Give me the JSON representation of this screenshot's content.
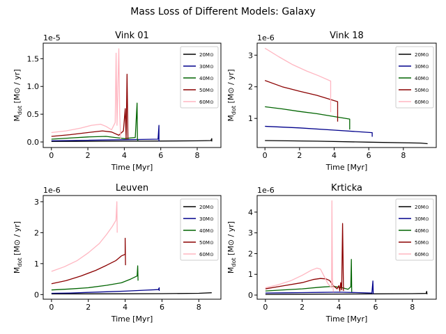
{
  "figure": {
    "title": "Mass Loss of Different Models: Galaxy"
  },
  "chart_data": [
    {
      "type": "line",
      "title": "Vink 01",
      "xlabel": "Time [Myr]",
      "ylabel": "M_dot [M⊙ / yr]",
      "offset_label": "1e-5",
      "xlim": [
        -0.45,
        9.3
      ],
      "ylim": [
        -0.1,
        1.78
      ],
      "xticks": [
        0,
        2,
        4,
        6,
        8
      ],
      "yticks": [
        0.0,
        0.5,
        1.0,
        1.5
      ],
      "ytick_labels": [
        "0.0",
        "0.5",
        "1.0",
        "1.5"
      ],
      "legend_position": "upper right",
      "series": [
        {
          "name": "20M⊙",
          "color": "#000000",
          "x": [
            0,
            2,
            4,
            6,
            8,
            8.75,
            8.8,
            8.8
          ],
          "y": [
            0.01,
            0.012,
            0.014,
            0.016,
            0.02,
            0.025,
            0.06,
            0.01
          ]
        },
        {
          "name": "30M⊙",
          "color": "#00008b",
          "x": [
            0,
            1,
            2,
            3,
            4,
            5,
            5.85,
            5.9,
            5.9,
            5.92
          ],
          "y": [
            0.02,
            0.025,
            0.03,
            0.035,
            0.04,
            0.045,
            0.05,
            0.3,
            0.02,
            0.01
          ]
        },
        {
          "name": "40M⊙",
          "color": "#006400",
          "x": [
            0,
            1,
            2,
            3,
            3.5,
            4,
            4.6,
            4.7,
            4.72,
            4.75
          ],
          "y": [
            0.05,
            0.07,
            0.09,
            0.1,
            0.08,
            0.06,
            0.08,
            0.7,
            0.05,
            0.02
          ]
        },
        {
          "name": "50M⊙",
          "color": "#8b0000",
          "x": [
            0,
            1,
            2,
            2.8,
            3.3,
            3.7,
            3.95,
            4.05,
            4.1,
            4.15,
            4.2
          ],
          "y": [
            0.1,
            0.13,
            0.17,
            0.2,
            0.18,
            0.12,
            0.2,
            0.6,
            0.05,
            1.22,
            0.05
          ]
        },
        {
          "name": "60M⊙",
          "color": "#ffb6c1",
          "x": [
            0,
            0.8,
            1.6,
            2.2,
            2.7,
            3.0,
            3.3,
            3.5,
            3.55,
            3.6,
            3.7,
            3.75,
            3.8
          ],
          "y": [
            0.17,
            0.2,
            0.25,
            0.3,
            0.32,
            0.28,
            0.22,
            0.35,
            1.6,
            0.3,
            1.68,
            0.5,
            0.05
          ]
        }
      ]
    },
    {
      "type": "line",
      "title": "Vink 18",
      "xlabel": "Time [Myr]",
      "ylabel": "M_dot [M⊙ / yr]",
      "offset_label": "1e-6",
      "xlim": [
        -0.45,
        9.9
      ],
      "ylim": [
        0.08,
        3.38
      ],
      "xticks": [
        0,
        2,
        4,
        6,
        8
      ],
      "yticks": [
        1,
        2,
        3
      ],
      "ytick_labels": [
        "1",
        "2",
        "3"
      ],
      "legend_position": "upper right",
      "series": [
        {
          "name": "20M⊙",
          "color": "#000000",
          "x": [
            0,
            3,
            6,
            9,
            9.4
          ],
          "y": [
            0.3,
            0.28,
            0.25,
            0.22,
            0.2
          ]
        },
        {
          "name": "30M⊙",
          "color": "#00008b",
          "x": [
            0,
            2,
            4,
            6.2,
            6.2
          ],
          "y": [
            0.75,
            0.7,
            0.63,
            0.55,
            0.42
          ]
        },
        {
          "name": "40M⊙",
          "color": "#006400",
          "x": [
            0,
            1,
            2,
            3,
            4,
            4.9,
            4.9
          ],
          "y": [
            1.37,
            1.3,
            1.22,
            1.15,
            1.06,
            0.98,
            0.65
          ]
        },
        {
          "name": "50M⊙",
          "color": "#8b0000",
          "x": [
            0,
            1,
            2,
            3,
            4.2,
            4.2
          ],
          "y": [
            2.2,
            2.0,
            1.86,
            1.73,
            1.53,
            0.9
          ]
        },
        {
          "name": "60M⊙",
          "color": "#ffb6c1",
          "x": [
            0,
            0.8,
            1.6,
            2.4,
            3.1,
            3.8,
            3.8
          ],
          "y": [
            3.22,
            2.95,
            2.7,
            2.5,
            2.35,
            2.18,
            1.2
          ]
        }
      ]
    },
    {
      "type": "line",
      "title": "Leuven",
      "xlabel": "Time [Myr]",
      "ylabel": "M_dot [M⊙ / yr]",
      "offset_label": "1e-6",
      "xlim": [
        -0.45,
        9.2
      ],
      "ylim": [
        -0.15,
        3.2
      ],
      "xticks": [
        0,
        2,
        4,
        6,
        8
      ],
      "yticks": [
        0,
        1,
        2,
        3
      ],
      "ytick_labels": [
        "0",
        "1",
        "2",
        "3"
      ],
      "legend_position": "upper right",
      "series": [
        {
          "name": "20M⊙",
          "color": "#000000",
          "x": [
            0,
            2,
            4,
            6,
            8,
            8.7
          ],
          "y": [
            0.02,
            0.022,
            0.025,
            0.03,
            0.04,
            0.06
          ]
        },
        {
          "name": "30M⊙",
          "color": "#00008b",
          "x": [
            0,
            1,
            2,
            3,
            4,
            5,
            5.8,
            5.85,
            5.85
          ],
          "y": [
            0.04,
            0.05,
            0.07,
            0.09,
            0.11,
            0.14,
            0.16,
            0.22,
            0.12
          ]
        },
        {
          "name": "40M⊙",
          "color": "#006400",
          "x": [
            0,
            1,
            2,
            3,
            3.8,
            4.3,
            4.65,
            4.68,
            4.7
          ],
          "y": [
            0.15,
            0.18,
            0.22,
            0.3,
            0.38,
            0.5,
            0.6,
            0.93,
            0.45
          ]
        },
        {
          "name": "50M⊙",
          "color": "#8b0000",
          "x": [
            0,
            0.8,
            1.6,
            2.4,
            3.0,
            3.5,
            3.8,
            4.0,
            4.0,
            4.02
          ],
          "y": [
            0.35,
            0.45,
            0.6,
            0.78,
            0.95,
            1.1,
            1.25,
            1.3,
            1.82,
            0.95
          ]
        },
        {
          "name": "60M⊙",
          "color": "#ffb6c1",
          "x": [
            0,
            0.7,
            1.4,
            2.0,
            2.6,
            3.0,
            3.3,
            3.5,
            3.55,
            3.57
          ],
          "y": [
            0.75,
            0.9,
            1.1,
            1.35,
            1.65,
            1.95,
            2.2,
            2.4,
            3.0,
            2.0
          ]
        }
      ]
    },
    {
      "type": "line",
      "title": "Krticka",
      "xlabel": "Time [Myr]",
      "ylabel": "M_dot [M⊙ / yr]",
      "offset_label": "1e-6",
      "xlim": [
        -0.45,
        9.3
      ],
      "ylim": [
        -0.2,
        4.8
      ],
      "xticks": [
        0,
        2,
        4,
        6,
        8
      ],
      "yticks": [
        0,
        1,
        2,
        3,
        4
      ],
      "ytick_labels": [
        "0",
        "1",
        "2",
        "3",
        "4"
      ],
      "legend_position": "upper right",
      "series": [
        {
          "name": "20M⊙",
          "color": "#000000",
          "x": [
            0,
            2,
            4,
            6,
            8,
            8.75,
            8.78,
            8.8
          ],
          "y": [
            0.03,
            0.04,
            0.05,
            0.06,
            0.07,
            0.08,
            0.18,
            0.04
          ]
        },
        {
          "name": "30M⊙",
          "color": "#00008b",
          "x": [
            0,
            1,
            2,
            3,
            4,
            5,
            5.8,
            5.85,
            5.87
          ],
          "y": [
            0.1,
            0.11,
            0.12,
            0.13,
            0.14,
            0.12,
            0.1,
            0.68,
            0.05
          ]
        },
        {
          "name": "40M⊙",
          "color": "#006400",
          "x": [
            0,
            1,
            2,
            3,
            3.7,
            4.2,
            4.5,
            4.65,
            4.68,
            4.7
          ],
          "y": [
            0.2,
            0.25,
            0.3,
            0.38,
            0.42,
            0.35,
            0.28,
            0.4,
            1.72,
            0.15
          ]
        },
        {
          "name": "50M⊙",
          "color": "#8b0000",
          "x": [
            0,
            1,
            2,
            2.6,
            3.0,
            3.3,
            3.5,
            3.7,
            3.9,
            4.0,
            4.05,
            4.1,
            4.15,
            4.2,
            4.25
          ],
          "y": [
            0.3,
            0.45,
            0.6,
            0.75,
            0.8,
            0.78,
            0.7,
            0.45,
            0.3,
            0.45,
            0.2,
            0.6,
            0.25,
            3.45,
            0.2
          ]
        },
        {
          "name": "60M⊙",
          "color": "#ffb6c1",
          "x": [
            0,
            0.7,
            1.4,
            2.0,
            2.5,
            2.8,
            3.0,
            3.2,
            3.4,
            3.6,
            3.62,
            3.65,
            3.7
          ],
          "y": [
            0.35,
            0.5,
            0.7,
            0.95,
            1.2,
            1.3,
            1.25,
            0.9,
            0.55,
            0.35,
            4.55,
            0.8,
            0.15
          ]
        }
      ]
    }
  ]
}
